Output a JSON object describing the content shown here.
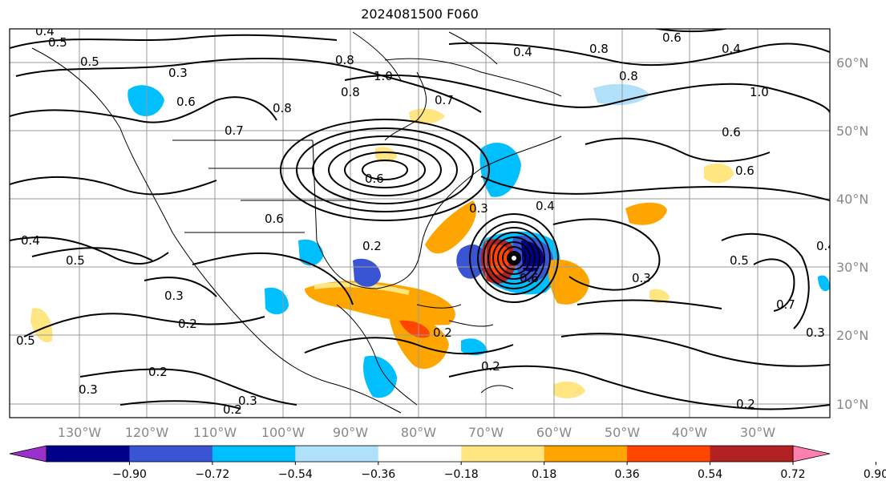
{
  "title": "2024081500 F060",
  "map": {
    "lon_labels": [
      "130°W",
      "120°W",
      "110°W",
      "100°W",
      "90°W",
      "80°W",
      "70°W",
      "60°W",
      "50°W",
      "40°W",
      "30°W"
    ],
    "lat_labels": [
      "10°N",
      "20°N",
      "30°N",
      "40°N",
      "50°N",
      "60°N"
    ],
    "contour_labels": [
      "0.4",
      "0.5",
      "0.5",
      "0.3",
      "0.8",
      "1.0",
      "0.8",
      "0.8",
      "0.6",
      "0.7",
      "0.7",
      "0.4",
      "0.8",
      "0.8",
      "1.0",
      "0.6",
      "0.6",
      "0.3",
      "0.6",
      "0.4",
      "0.5",
      "0.5",
      "0.3",
      "0.4",
      "0.2",
      "0.3",
      "0.2",
      "0.2",
      "0.3",
      "0.2",
      "0.3",
      "0.6",
      "0.2",
      "0.6",
      "0.4",
      "0.2",
      "0.6",
      "0.4",
      "0.5",
      "0.7",
      "0.3",
      "0.2"
    ]
  },
  "colorbar": {
    "ticks": [
      "−0.90",
      "−0.72",
      "−0.54",
      "−0.36",
      "−0.18",
      "0.18",
      "0.36",
      "0.54",
      "0.72",
      "0.90"
    ],
    "colors": [
      "#9932cc",
      "#00008b",
      "#3a55d4",
      "#00bfff",
      "#b0e0fa",
      "#ffffff",
      "#ffe680",
      "#ffa500",
      "#ff4500",
      "#b22222",
      "#ff80b0"
    ]
  }
}
